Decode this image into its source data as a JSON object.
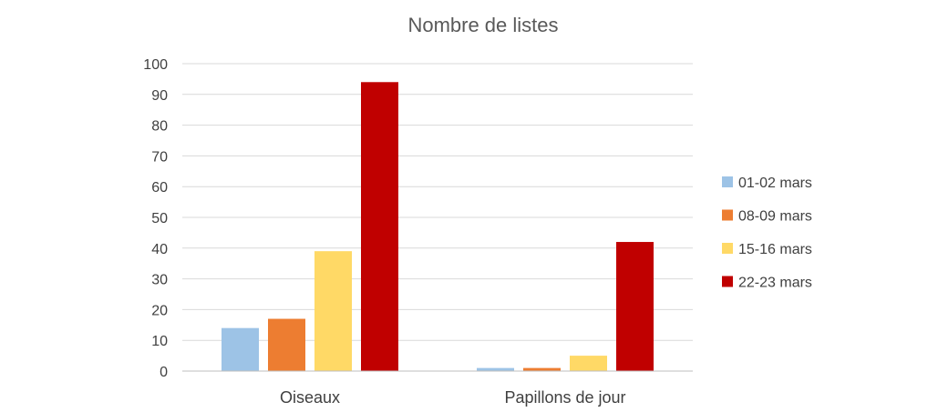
{
  "chart_data": {
    "type": "bar",
    "title": "Nombre de listes",
    "xlabel": "",
    "ylabel": "",
    "categories": [
      "Oiseaux",
      "Papillons de jour"
    ],
    "series": [
      {
        "name": "01-02 mars",
        "values": [
          14,
          1
        ],
        "color": "#9dc3e6"
      },
      {
        "name": "08-09 mars",
        "values": [
          17,
          1
        ],
        "color": "#ed7d31"
      },
      {
        "name": "15-16 mars",
        "values": [
          39,
          5
        ],
        "color": "#ffd966"
      },
      {
        "name": "22-23 mars",
        "values": [
          94,
          42
        ],
        "color": "#c00000"
      }
    ],
    "ylim": [
      0,
      100
    ],
    "yticks": [
      0,
      10,
      20,
      30,
      40,
      50,
      60,
      70,
      80,
      90,
      100
    ],
    "grid": true,
    "legend": "right"
  }
}
